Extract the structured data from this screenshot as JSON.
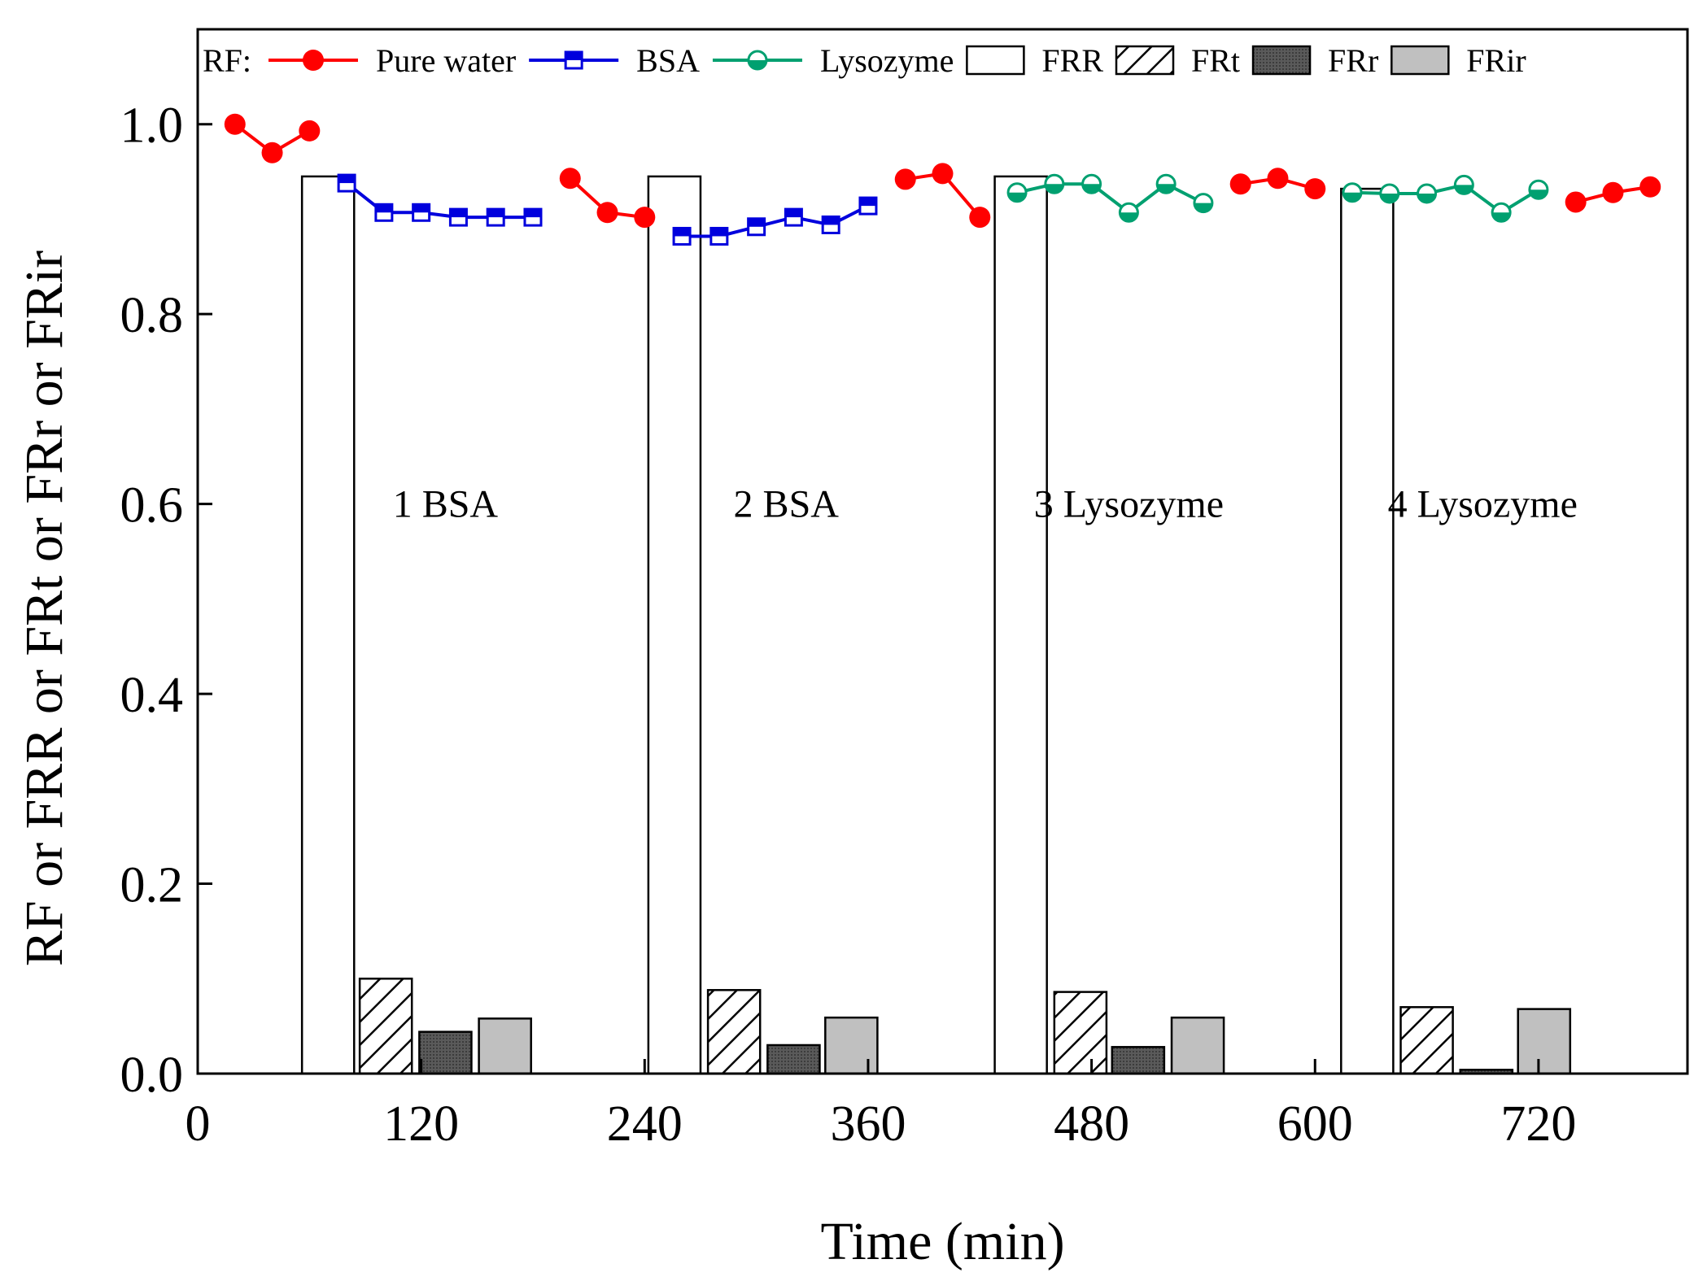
{
  "chart_data": {
    "type": "bar",
    "xlabel": "Time (min)",
    "ylabel": "RF or FRR or FRt or FRr or FRir",
    "xlim": [
      0,
      800
    ],
    "ylim": [
      0,
      1.1
    ],
    "x_ticks": [
      0,
      120,
      240,
      360,
      480,
      600,
      720
    ],
    "y_ticks": [
      0.0,
      0.2,
      0.4,
      0.6,
      0.8,
      1.0
    ],
    "x_tick_labels": [
      "0",
      "120",
      "240",
      "360",
      "480",
      "600",
      "720"
    ],
    "y_tick_labels": [
      "0.0",
      "0.2",
      "0.4",
      "0.6",
      "0.8",
      "1.0"
    ],
    "grid": false,
    "legend": {
      "prefix": "RF:",
      "placement": "top",
      "entries": [
        {
          "label": "Pure water",
          "kind": "line",
          "color": "#ff0000",
          "marker": "circle"
        },
        {
          "label": "BSA",
          "kind": "line",
          "color": "#0000dd",
          "marker": "half-square"
        },
        {
          "label": "Lysozyme",
          "kind": "line",
          "color": "#00a070",
          "marker": "half-circle"
        },
        {
          "label": "FRR",
          "kind": "bar",
          "fill": "white"
        },
        {
          "label": "FRt",
          "kind": "bar",
          "fill": "hatch"
        },
        {
          "label": "FRr",
          "kind": "bar",
          "fill": "dark-gray"
        },
        {
          "label": "FRir",
          "kind": "bar",
          "fill": "light-gray"
        }
      ]
    },
    "line_series": [
      {
        "name": "Pure water",
        "color": "#ff0000",
        "marker": "circle",
        "segments": [
          [
            [
              20,
              1.0
            ],
            [
              40,
              0.97
            ],
            [
              60,
              0.993
            ]
          ],
          [
            [
              200,
              0.943
            ],
            [
              220,
              0.907
            ],
            [
              240,
              0.902
            ]
          ],
          [
            [
              380,
              0.942
            ],
            [
              400,
              0.948
            ],
            [
              420,
              0.902
            ]
          ],
          [
            [
              560,
              0.937
            ],
            [
              580,
              0.943
            ],
            [
              600,
              0.932
            ]
          ],
          [
            [
              740,
              0.918
            ],
            [
              760,
              0.928
            ],
            [
              780,
              0.934
            ]
          ]
        ]
      },
      {
        "name": "BSA",
        "color": "#0000dd",
        "marker": "half-square",
        "segments": [
          [
            [
              80,
              0.938
            ],
            [
              100,
              0.907
            ],
            [
              120,
              0.907
            ],
            [
              140,
              0.902
            ],
            [
              160,
              0.902
            ],
            [
              180,
              0.902
            ]
          ],
          [
            [
              260,
              0.882
            ],
            [
              280,
              0.882
            ],
            [
              300,
              0.892
            ],
            [
              320,
              0.902
            ],
            [
              340,
              0.894
            ],
            [
              360,
              0.914
            ]
          ]
        ]
      },
      {
        "name": "Lysozyme",
        "color": "#00a070",
        "marker": "half-circle",
        "segments": [
          [
            [
              440,
              0.928
            ],
            [
              460,
              0.937
            ],
            [
              480,
              0.937
            ],
            [
              500,
              0.907
            ],
            [
              520,
              0.937
            ],
            [
              540,
              0.917
            ]
          ],
          [
            [
              620,
              0.928
            ],
            [
              640,
              0.927
            ],
            [
              660,
              0.927
            ],
            [
              680,
              0.936
            ],
            [
              700,
              0.907
            ],
            [
              720,
              0.931
            ]
          ]
        ]
      }
    ],
    "bar_series": [
      {
        "name": "FRR",
        "fill": "white",
        "bars": [
          [
            70,
            0.945
          ],
          [
            256,
            0.945
          ],
          [
            442,
            0.945
          ],
          [
            628,
            0.932
          ]
        ]
      },
      {
        "name": "FRt",
        "fill": "hatch",
        "bars": [
          [
            101,
            0.1
          ],
          [
            288,
            0.088
          ],
          [
            474,
            0.086
          ],
          [
            660,
            0.07
          ]
        ]
      },
      {
        "name": "FRr",
        "fill": "dark-gray",
        "bars": [
          [
            133,
            0.044
          ],
          [
            320,
            0.03
          ],
          [
            505,
            0.028
          ],
          [
            692,
            0.004
          ]
        ]
      },
      {
        "name": "FRir",
        "fill": "light-gray",
        "bars": [
          [
            165,
            0.058
          ],
          [
            351,
            0.059
          ],
          [
            537,
            0.059
          ],
          [
            723,
            0.068
          ]
        ]
      }
    ],
    "bar_width": 28,
    "annotations": [
      {
        "text": "1 BSA",
        "x": 133,
        "y": 0.6
      },
      {
        "text": "2 BSA",
        "x": 316,
        "y": 0.6
      },
      {
        "text": "3 Lysozyme",
        "x": 500,
        "y": 0.6
      },
      {
        "text": "4 Lysozyme",
        "x": 690,
        "y": 0.6
      }
    ]
  }
}
